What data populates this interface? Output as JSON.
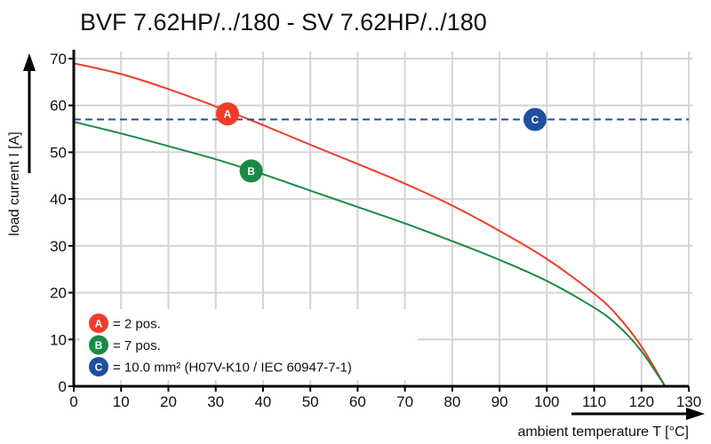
{
  "chart_data": {
    "type": "line",
    "title": "BVF 7.62HP/../180 - SV 7.62HP/../180",
    "xlabel": "ambient temperature T [°C]",
    "ylabel": "load current I [A]",
    "xlim": [
      0,
      130
    ],
    "ylim": [
      0,
      70
    ],
    "xticks": [
      "0",
      "10",
      "20",
      "30",
      "40",
      "50",
      "60",
      "70",
      "80",
      "90",
      "100",
      "110",
      "120",
      "130"
    ],
    "yticks": [
      "0",
      "10",
      "20",
      "30",
      "40",
      "50",
      "60",
      "70"
    ],
    "grid": true,
    "series": [
      {
        "marker": "A",
        "color": "#f03c28",
        "x": [
          0,
          10,
          20,
          30,
          40,
          50,
          60,
          70,
          80,
          90,
          100,
          110,
          115,
          120,
          125
        ],
        "y": [
          69,
          66.7,
          63.5,
          59.8,
          55.8,
          51.6,
          47.5,
          43.3,
          38.6,
          33.2,
          27.2,
          19.8,
          15,
          8.5,
          0
        ]
      },
      {
        "marker": "B",
        "color": "#1a8a45",
        "x": [
          0,
          10,
          20,
          30,
          40,
          50,
          60,
          70,
          80,
          90,
          100,
          110,
          115,
          120,
          125
        ],
        "y": [
          56.5,
          54,
          51.3,
          48.5,
          45.3,
          41.8,
          38.3,
          34.8,
          31,
          27,
          22.5,
          16.8,
          13,
          7.5,
          0
        ]
      },
      {
        "marker": "C",
        "color": "#1f4fa0",
        "style": "dashed",
        "x": [
          0,
          130
        ],
        "y": [
          57,
          57
        ]
      }
    ],
    "markers": [
      {
        "label": "A",
        "x": 32.5,
        "y": 58.2,
        "color": "#f03c28"
      },
      {
        "label": "B",
        "x": 37.5,
        "y": 46,
        "color": "#1a8a45"
      },
      {
        "label": "C",
        "x": 97.5,
        "y": 57,
        "color": "#1f4fa0"
      }
    ],
    "legend": {
      "placement": "bottom-left",
      "items": [
        {
          "label": "A",
          "text": "= 2 pos.",
          "color": "#f03c28"
        },
        {
          "label": "B",
          "text": "= 7 pos.",
          "color": "#1a8a45"
        },
        {
          "label": "C",
          "text": "= 10.0 mm² (H07V-K10 / IEC 60947-7-1)",
          "color": "#1f4fa0"
        }
      ]
    }
  }
}
